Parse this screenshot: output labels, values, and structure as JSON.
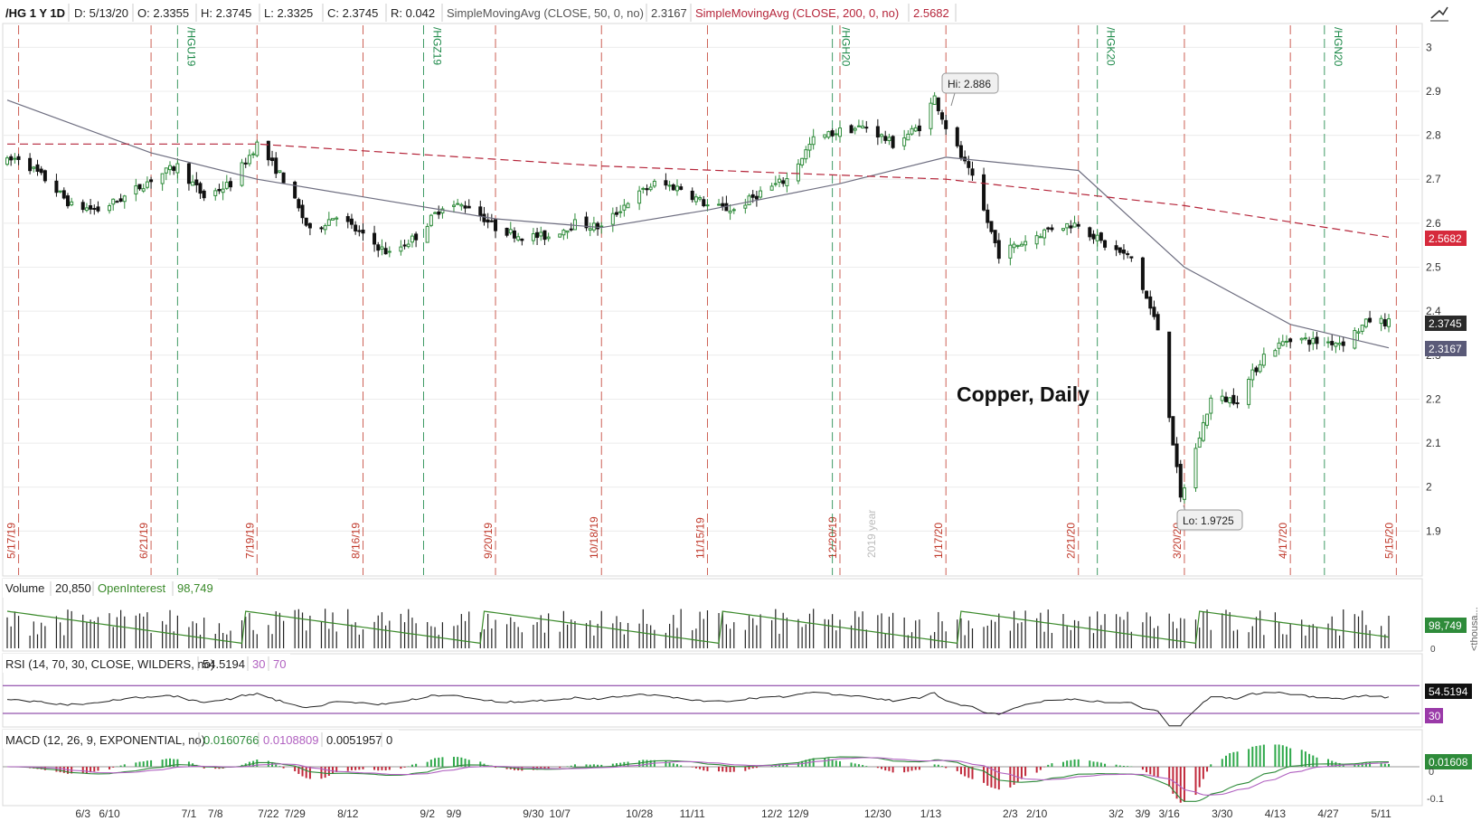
{
  "header": {
    "symbol": "/HG 1 Y 1D",
    "date": "D: 5/13/20",
    "open": "O: 2.3355",
    "high": "H: 2.3745",
    "low": "L: 2.3325",
    "close": "C: 2.3745",
    "range": "R: 0.042",
    "sma50_label": "SimpleMovingAvg (CLOSE, 50, 0, no)",
    "sma50_value": "2.3167",
    "sma200_label": "SimpleMovingAvg (CLOSE, 200, 0, no)",
    "sma200_value": "2.5682"
  },
  "main_chart": {
    "annotation": "Copper, Daily",
    "hi_label": "Hi: 2.886",
    "lo_label": "Lo: 1.9725",
    "year_marker": "2019 year",
    "price_ticks": [
      "3",
      "2.9",
      "2.8",
      "2.7",
      "2.6",
      "2.5",
      "2.4",
      "2.3",
      "2.2",
      "2.1",
      "2",
      "1.9"
    ],
    "price_badges": {
      "sma200": "2.5682",
      "last": "2.3745",
      "sma50": "2.3167"
    },
    "expiration_dates": [
      "5/17/19",
      "6/21/19",
      "7/19/19",
      "8/16/19",
      "9/20/19",
      "10/18/19",
      "11/15/19",
      "12/20/19",
      "1/17/20",
      "2/21/20",
      "3/20/20",
      "4/17/20",
      "5/15/20"
    ],
    "rollover_contracts": [
      "/HGU19",
      "/HGZ19",
      "/HGH20",
      "/HGK20",
      "/HGN20"
    ]
  },
  "volume_panel": {
    "label": "Volume",
    "volume_value": "20,850",
    "oi_label": "OpenInterest",
    "oi_value": "98,749",
    "badge": "98,749",
    "axis_unit": "<thousa...",
    "zero_tick": "0"
  },
  "rsi_panel": {
    "label": "RSI (14, 70, 30, CLOSE, WILDERS, no)",
    "value": "54.5194",
    "oversold": "30",
    "overbought": "70",
    "badge_value": "54.5194",
    "badge_level": "30"
  },
  "macd_panel": {
    "label": "MACD (12, 26, 9, EXPONENTIAL, no)",
    "value": "0.0160766",
    "avg": "0.0108809",
    "diff": "0.0051957",
    "zero": "0",
    "badge": "0.01608",
    "ticks": [
      "0",
      "-0.1"
    ]
  },
  "time_axis": [
    "6/3",
    "6/10",
    "7/1",
    "7/8",
    "7/22",
    "7/29",
    "8/12",
    "9/2",
    "9/9",
    "9/30",
    "10/7",
    "10/28",
    "11/11",
    "12/2",
    "12/9",
    "12/30",
    "1/13",
    "2/3",
    "2/10",
    "3/2",
    "3/9",
    "3/16",
    "3/30",
    "4/13",
    "4/27",
    "5/11"
  ],
  "colors": {
    "up": "#2e8b3a",
    "down": "#111111",
    "sma50": "#6e6e80",
    "sma200": "#b5253a",
    "expiration": "#c0392b",
    "rollover": "#1e8a4a",
    "oi_line": "#3a8a2a",
    "rsi_line": "#222222",
    "rsi_bands": "#7a2a9a",
    "macd_line": "#2e8b3a",
    "macd_avg": "#b060c0"
  },
  "chart_data": {
    "type": "candlestick",
    "title": "Copper, Daily",
    "ylim": [
      1.8,
      3.05
    ],
    "grid": true,
    "price_path": [
      [
        "5/14/19",
        2.74
      ],
      [
        "5/17/19",
        2.75
      ],
      [
        "5/24/19",
        2.7
      ],
      [
        "5/31/19",
        2.64
      ],
      [
        "6/7/19",
        2.63
      ],
      [
        "6/14/19",
        2.66
      ],
      [
        "6/21/19",
        2.7
      ],
      [
        "6/28/19",
        2.73
      ],
      [
        "7/5/19",
        2.66
      ],
      [
        "7/12/19",
        2.69
      ],
      [
        "7/19/19",
        2.78
      ],
      [
        "7/26/19",
        2.7
      ],
      [
        "8/2/19",
        2.58
      ],
      [
        "8/9/19",
        2.62
      ],
      [
        "8/16/19",
        2.57
      ],
      [
        "8/23/19",
        2.53
      ],
      [
        "8/30/19",
        2.57
      ],
      [
        "9/6/19",
        2.64
      ],
      [
        "9/13/19",
        2.64
      ],
      [
        "9/20/19",
        2.59
      ],
      [
        "9/27/19",
        2.57
      ],
      [
        "10/4/19",
        2.57
      ],
      [
        "10/11/19",
        2.6
      ],
      [
        "10/18/19",
        2.59
      ],
      [
        "10/25/19",
        2.65
      ],
      [
        "11/1/19",
        2.69
      ],
      [
        "11/8/19",
        2.68
      ],
      [
        "11/15/19",
        2.64
      ],
      [
        "11/22/19",
        2.63
      ],
      [
        "11/29/19",
        2.67
      ],
      [
        "12/6/19",
        2.7
      ],
      [
        "12/13/19",
        2.79
      ],
      [
        "12/20/19",
        2.81
      ],
      [
        "12/27/19",
        2.82
      ],
      [
        "1/3/20",
        2.78
      ],
      [
        "1/10/20",
        2.82
      ],
      [
        "1/14/20",
        2.886
      ],
      [
        "1/17/20",
        2.82
      ],
      [
        "1/24/20",
        2.7
      ],
      [
        "1/31/20",
        2.53
      ],
      [
        "2/7/20",
        2.56
      ],
      [
        "2/14/20",
        2.59
      ],
      [
        "2/21/20",
        2.6
      ],
      [
        "2/28/20",
        2.55
      ],
      [
        "3/6/20",
        2.52
      ],
      [
        "3/13/20",
        2.36
      ],
      [
        "3/19/20",
        1.9725
      ],
      [
        "3/27/20",
        2.2
      ],
      [
        "4/3/20",
        2.2
      ],
      [
        "4/10/20",
        2.3
      ],
      [
        "4/17/20",
        2.34
      ],
      [
        "4/24/20",
        2.33
      ],
      [
        "5/1/20",
        2.33
      ],
      [
        "5/8/20",
        2.38
      ],
      [
        "5/13/20",
        2.3745
      ]
    ],
    "sma50_path": [
      [
        "5/14/19",
        2.88
      ],
      [
        "6/21/19",
        2.76
      ],
      [
        "7/19/19",
        2.7
      ],
      [
        "8/16/19",
        2.66
      ],
      [
        "9/20/19",
        2.61
      ],
      [
        "10/18/19",
        2.59
      ],
      [
        "11/15/19",
        2.63
      ],
      [
        "12/20/19",
        2.69
      ],
      [
        "1/17/20",
        2.75
      ],
      [
        "2/21/20",
        2.72
      ],
      [
        "3/20/20",
        2.5
      ],
      [
        "4/17/20",
        2.37
      ],
      [
        "5/13/20",
        2.3167
      ]
    ],
    "sma200_path": [
      [
        "5/14/19",
        2.78
      ],
      [
        "7/19/19",
        2.78
      ],
      [
        "10/18/19",
        2.73
      ],
      [
        "1/17/20",
        2.7
      ],
      [
        "3/20/20",
        2.64
      ],
      [
        "5/13/20",
        2.5682
      ]
    ]
  }
}
